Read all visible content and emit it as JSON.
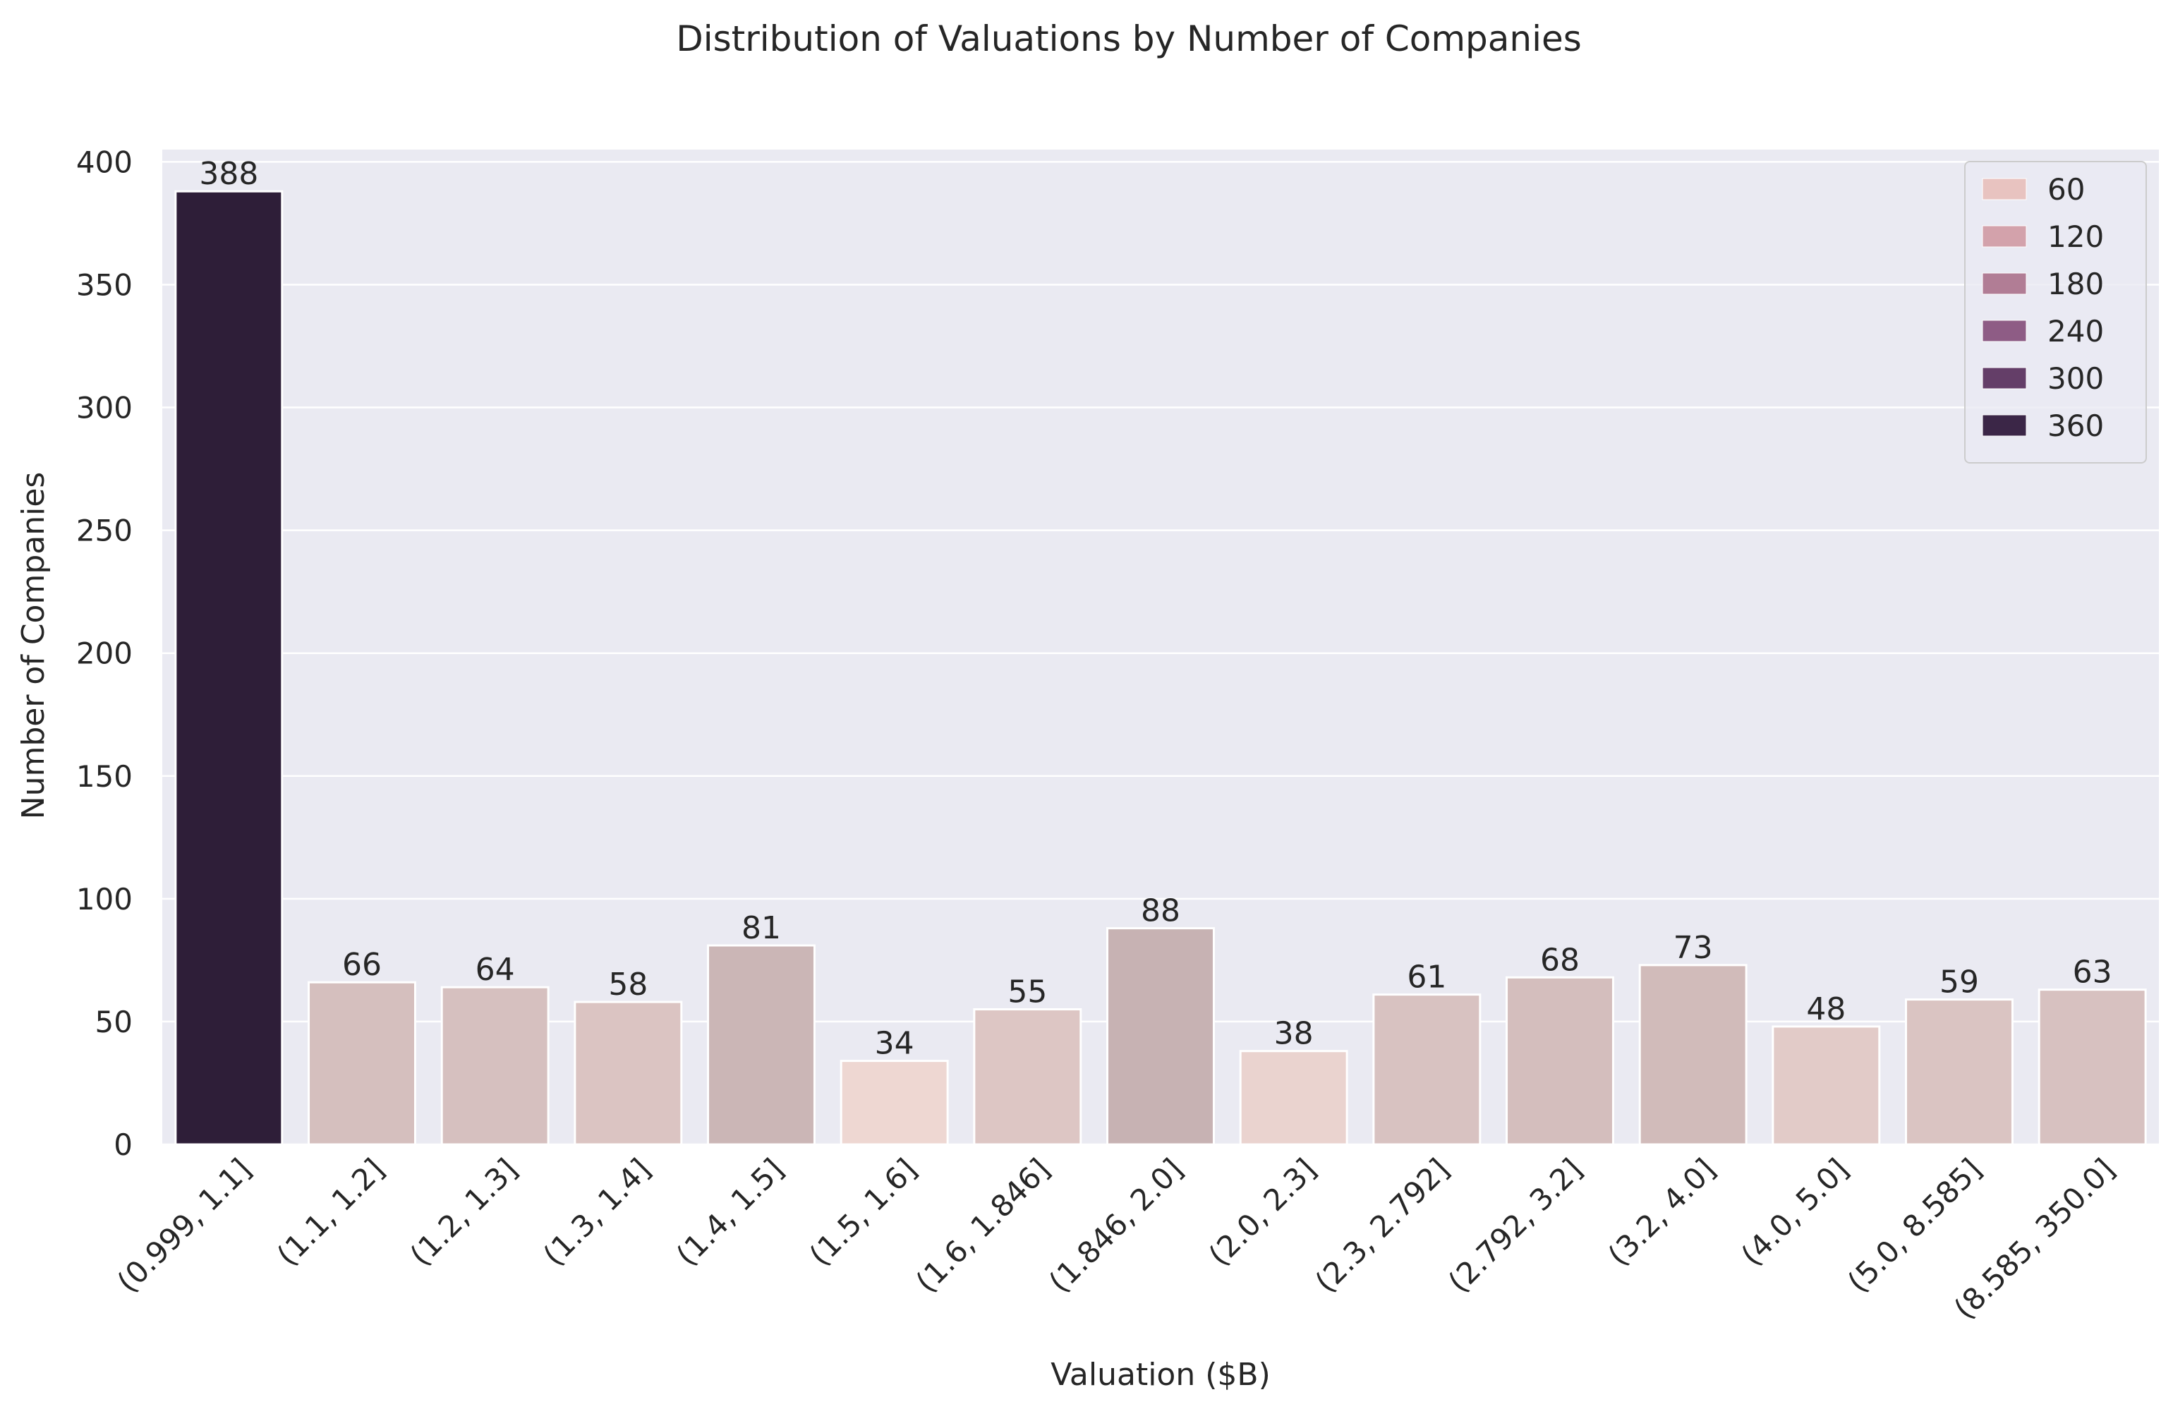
{
  "chart_data": {
    "type": "bar",
    "title": "Distribution of Valuations by Number of Companies",
    "xlabel": "Valuation ($B)",
    "ylabel": "Number of Companies",
    "categories": [
      "(0.999, 1.1]",
      "(1.1, 1.2]",
      "(1.2, 1.3]",
      "(1.3, 1.4]",
      "(1.4, 1.5]",
      "(1.5, 1.6]",
      "(1.6, 1.846]",
      "(1.846, 2.0]",
      "(2.0, 2.3]",
      "(2.3, 2.792]",
      "(2.792, 3.2]",
      "(3.2, 4.0]",
      "(4.0, 5.0]",
      "(5.0, 8.585]",
      "(8.585, 350.0]"
    ],
    "values": [
      388,
      66,
      64,
      58,
      81,
      34,
      55,
      88,
      38,
      61,
      68,
      73,
      48,
      59,
      63
    ],
    "ylim": [
      0,
      405
    ],
    "yticks": [
      0,
      50,
      100,
      150,
      200,
      250,
      300,
      350,
      400
    ],
    "grid": true,
    "legend_placement": "top-right",
    "legend": {
      "entries": [
        {
          "label": "60",
          "color": "#e8c3c0"
        },
        {
          "label": "120",
          "color": "#d3a2ab"
        },
        {
          "label": "180",
          "color": "#b17d95"
        },
        {
          "label": "240",
          "color": "#8e5c85"
        },
        {
          "label": "300",
          "color": "#643e68"
        },
        {
          "label": "360",
          "color": "#3b2647"
        }
      ]
    },
    "palette": {
      "low": "#eed7d2",
      "high": "#2e1e38",
      "background": "#eaeaf2",
      "grid": "#ffffff"
    }
  }
}
